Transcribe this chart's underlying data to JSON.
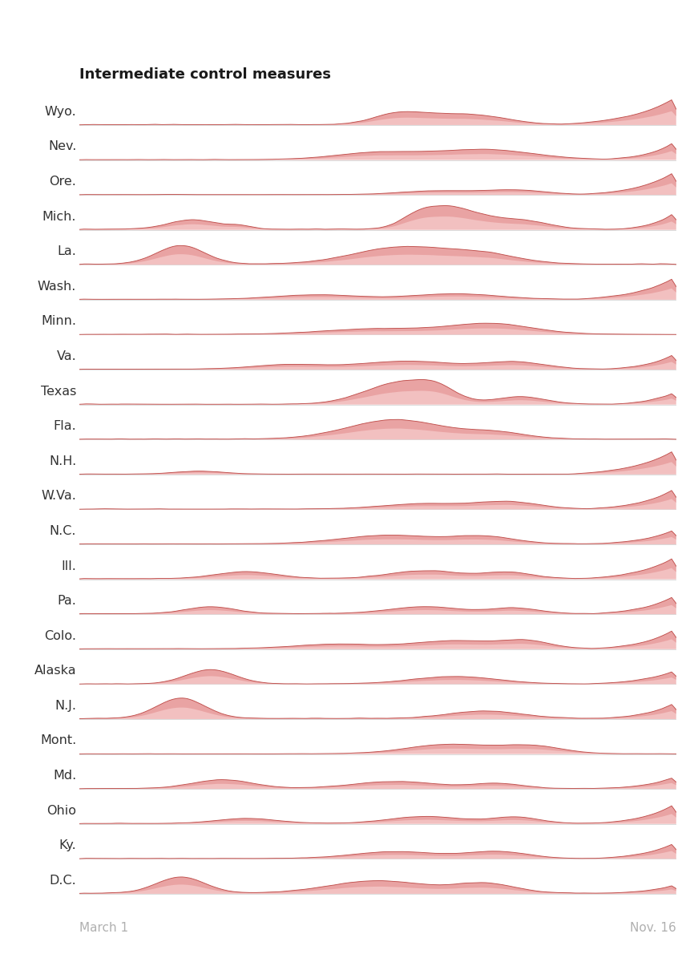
{
  "title": "Intermediate control measures",
  "title_fontsize": 13,
  "title_fontweight": "bold",
  "xlabel_left": "March 1",
  "xlabel_right": "Nov. 16",
  "xlabel_fontsize": 11,
  "xlabel_color": "#b0b0b0",
  "background_color": "#ffffff",
  "fill_color_light": "#f2c0c0",
  "fill_color_dark": "#e08080",
  "line_color": "#c0504d",
  "label_color": "#333333",
  "states": [
    "Wyo.",
    "Nev.",
    "Ore.",
    "Mich.",
    "La.",
    "Wash.",
    "Minn.",
    "Va.",
    "Texas",
    "Fla.",
    "N.H.",
    "W.Va.",
    "N.C.",
    "Ill.",
    "Pa.",
    "Colo.",
    "Alaska",
    "N.J.",
    "Mont.",
    "Md.",
    "Ohio",
    "Ky.",
    "D.C."
  ],
  "label_fontsize": 11.5
}
